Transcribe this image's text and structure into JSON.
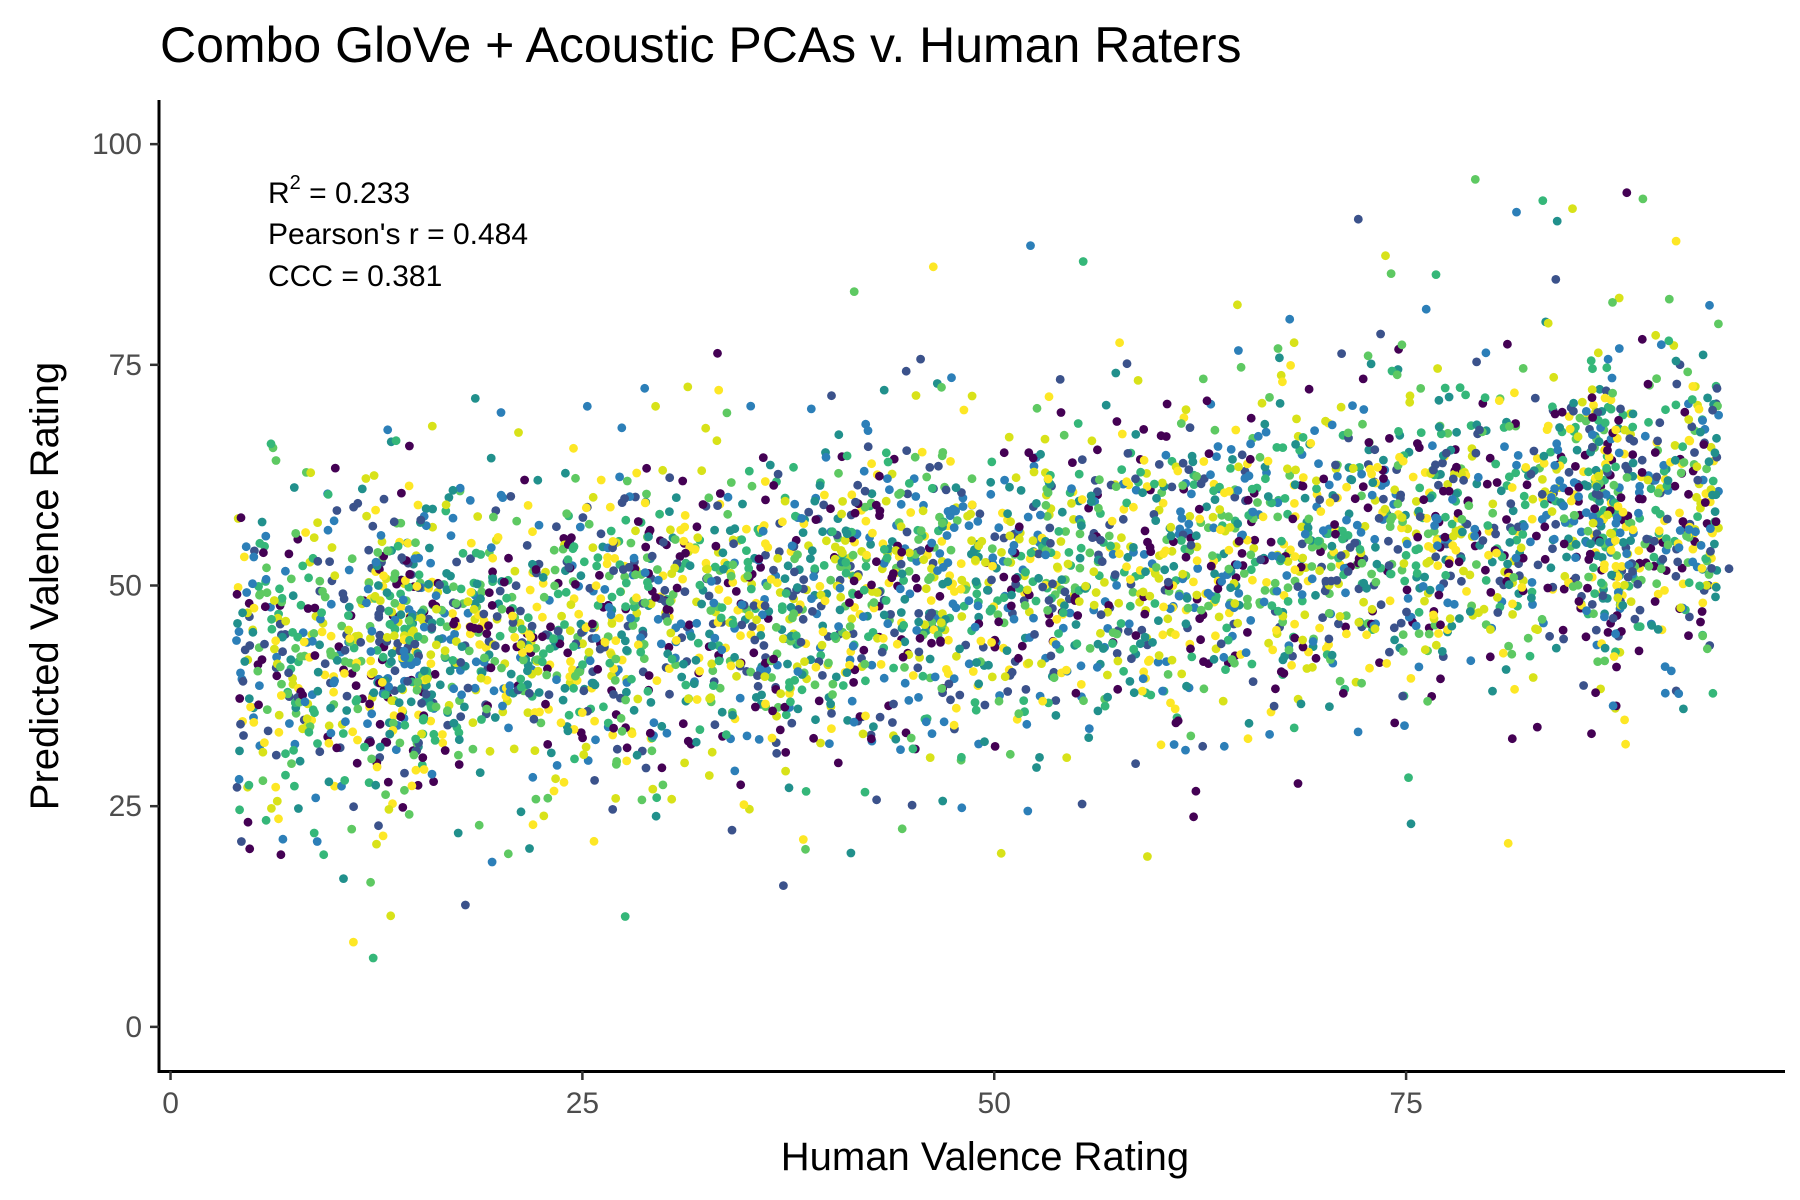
{
  "chart_data": {
    "type": "scatter",
    "title": "Combo GloVe + Acoustic PCAs v. Human Raters",
    "xlabel": "Human Valence Rating",
    "ylabel": "Predicted Valence Rating",
    "xlim": [
      -0.7,
      98
    ],
    "ylim": [
      -5,
      105
    ],
    "xticks": [
      0,
      25,
      50,
      75
    ],
    "yticks": [
      0,
      25,
      50,
      75,
      100
    ],
    "grid": false,
    "legend": "none",
    "annotations": {
      "r2_label": "R",
      "r2_sup": "2",
      "r2_value": " = 0.233",
      "pearson": "Pearson's r = 0.484",
      "ccc": "CCC = 0.381"
    },
    "palette": [
      "#440154",
      "#3b528b",
      "#21908c",
      "#5ec962",
      "#fde725",
      "#2c7fb8",
      "#35b779",
      "#d8e219"
    ],
    "n_points": 4000,
    "x_range": [
      4,
      94
    ],
    "fit_intercept": 40,
    "fit_slope": 0.21,
    "residual_sd": 9,
    "sampled_points": [
      [
        4.2,
        37.2
      ],
      [
        4.3,
        21
      ],
      [
        5,
        44.7
      ],
      [
        5.3,
        40.3
      ],
      [
        5.7,
        32.2
      ],
      [
        5.8,
        50.7
      ],
      [
        5.8,
        23.4
      ],
      [
        6.3,
        48.3
      ],
      [
        6.7,
        19.5
      ],
      [
        6.8,
        42.5
      ],
      [
        7.3,
        41.6
      ],
      [
        7.6,
        55.9
      ],
      [
        8.2,
        56
      ],
      [
        8.9,
        21
      ],
      [
        9.3,
        19.5
      ],
      [
        9.8,
        54.3
      ],
      [
        10,
        63.3
      ],
      [
        10.1,
        58.5
      ],
      [
        10.5,
        16.8
      ],
      [
        11,
        22.4
      ],
      [
        11.1,
        9.6
      ],
      [
        12,
        49.6
      ],
      [
        12.3,
        7.8
      ],
      [
        12.5,
        20.7
      ],
      [
        14.5,
        65.8
      ],
      [
        17.9,
        13.8
      ],
      [
        18.5,
        71.2
      ],
      [
        20.5,
        19.6
      ],
      [
        22,
        22.9
      ],
      [
        25.3,
        70.3
      ],
      [
        27.6,
        12.5
      ],
      [
        31.4,
        72.5
      ],
      [
        33.2,
        76.3
      ],
      [
        37.2,
        16
      ],
      [
        41.3,
        19.7
      ],
      [
        41.5,
        83.3
      ],
      [
        46.3,
        86.1
      ],
      [
        52.2,
        88.5
      ],
      [
        55.4,
        86.7
      ],
      [
        59.3,
        19.3
      ],
      [
        62.1,
        23.8
      ],
      [
        72.1,
        91.5
      ],
      [
        75.3,
        23
      ],
      [
        79.2,
        96
      ],
      [
        81.2,
        20.8
      ],
      [
        81.7,
        92.3
      ],
      [
        83.3,
        93.6
      ],
      [
        85.1,
        92.7
      ],
      [
        88.4,
        94.5
      ],
      [
        94.6,
        51.9
      ]
    ]
  }
}
